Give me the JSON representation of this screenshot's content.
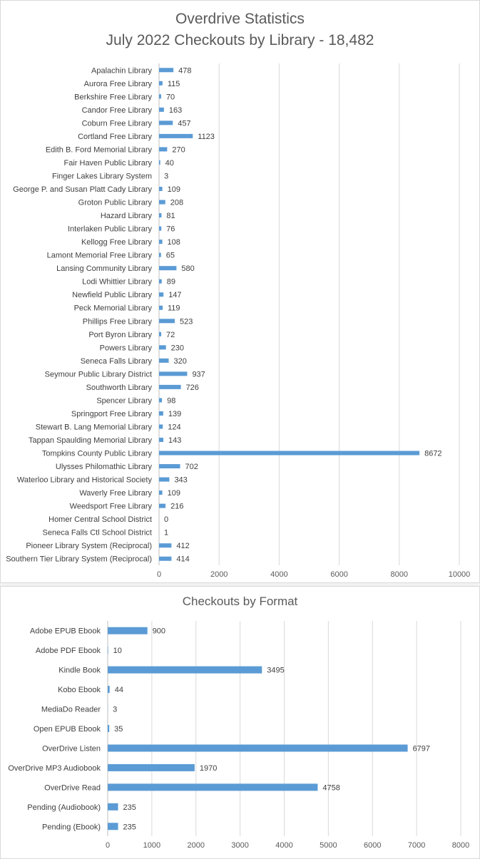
{
  "charts": [
    {
      "title_line1": "Overdrive Statistics",
      "title_line2": "July 2022 Checkouts by Library - 18,482"
    },
    {
      "title_line1": "Checkouts by Format"
    }
  ],
  "chart_data": [
    {
      "type": "bar",
      "orientation": "horizontal",
      "title": "Overdrive Statistics July 2022 Checkouts by Library - 18,482",
      "categories": [
        "Apalachin Library",
        "Aurora Free Library",
        "Berkshire Free Library",
        "Candor Free Library",
        "Coburn Free Library",
        "Cortland Free Library",
        "Edith B. Ford Memorial Library",
        "Fair Haven Public Library",
        "Finger Lakes Library System",
        "George P. and Susan Platt Cady Library",
        "Groton Public Library",
        "Hazard Library",
        "Interlaken Public Library",
        "Kellogg Free Library",
        "Lamont Memorial Free Library",
        "Lansing Community Library",
        "Lodi Whittier Library",
        "Newfield Public Library",
        "Peck Memorial Library",
        "Phillips Free Library",
        "Port Byron Library",
        "Powers Library",
        "Seneca Falls Library",
        "Seymour Public Library District",
        "Southworth Library",
        "Spencer Library",
        "Springport Free Library",
        "Stewart B. Lang Memorial Library",
        "Tappan Spaulding Memorial Library",
        "Tompkins County Public Library",
        "Ulysses Philomathic Library",
        "Waterloo Library and Historical Society",
        "Waverly Free Library",
        "Weedsport Free Library",
        "Homer Central School District",
        "Seneca Falls Ctl School District",
        "Pioneer Library System (Reciprocal)",
        "Southern Tier Library System (Reciprocal)"
      ],
      "values": [
        478,
        115,
        70,
        163,
        457,
        1123,
        270,
        40,
        3,
        109,
        208,
        81,
        76,
        108,
        65,
        580,
        89,
        147,
        119,
        523,
        72,
        230,
        320,
        937,
        726,
        98,
        139,
        124,
        143,
        8672,
        702,
        343,
        109,
        216,
        0,
        1,
        412,
        414
      ],
      "xlim": [
        0,
        10000
      ],
      "ticks": [
        0,
        2000,
        4000,
        6000,
        8000,
        10000
      ],
      "grid": true,
      "bar_color": "#5b9bd5"
    },
    {
      "type": "bar",
      "orientation": "horizontal",
      "title": "Checkouts by Format",
      "categories": [
        "Adobe EPUB Ebook",
        "Adobe PDF Ebook",
        "Kindle Book",
        "Kobo Ebook",
        "MediaDo Reader",
        "Open EPUB Ebook",
        "OverDrive Listen",
        "OverDrive MP3 Audiobook",
        "OverDrive Read",
        "Pending (Audiobook)",
        "Pending (Ebook)"
      ],
      "values": [
        900,
        10,
        3495,
        44,
        3,
        35,
        6797,
        1970,
        4758,
        235,
        235
      ],
      "xlim": [
        0,
        8000
      ],
      "ticks": [
        0,
        1000,
        2000,
        3000,
        4000,
        5000,
        6000,
        7000,
        8000
      ],
      "grid": true,
      "bar_color": "#5b9bd5"
    }
  ]
}
